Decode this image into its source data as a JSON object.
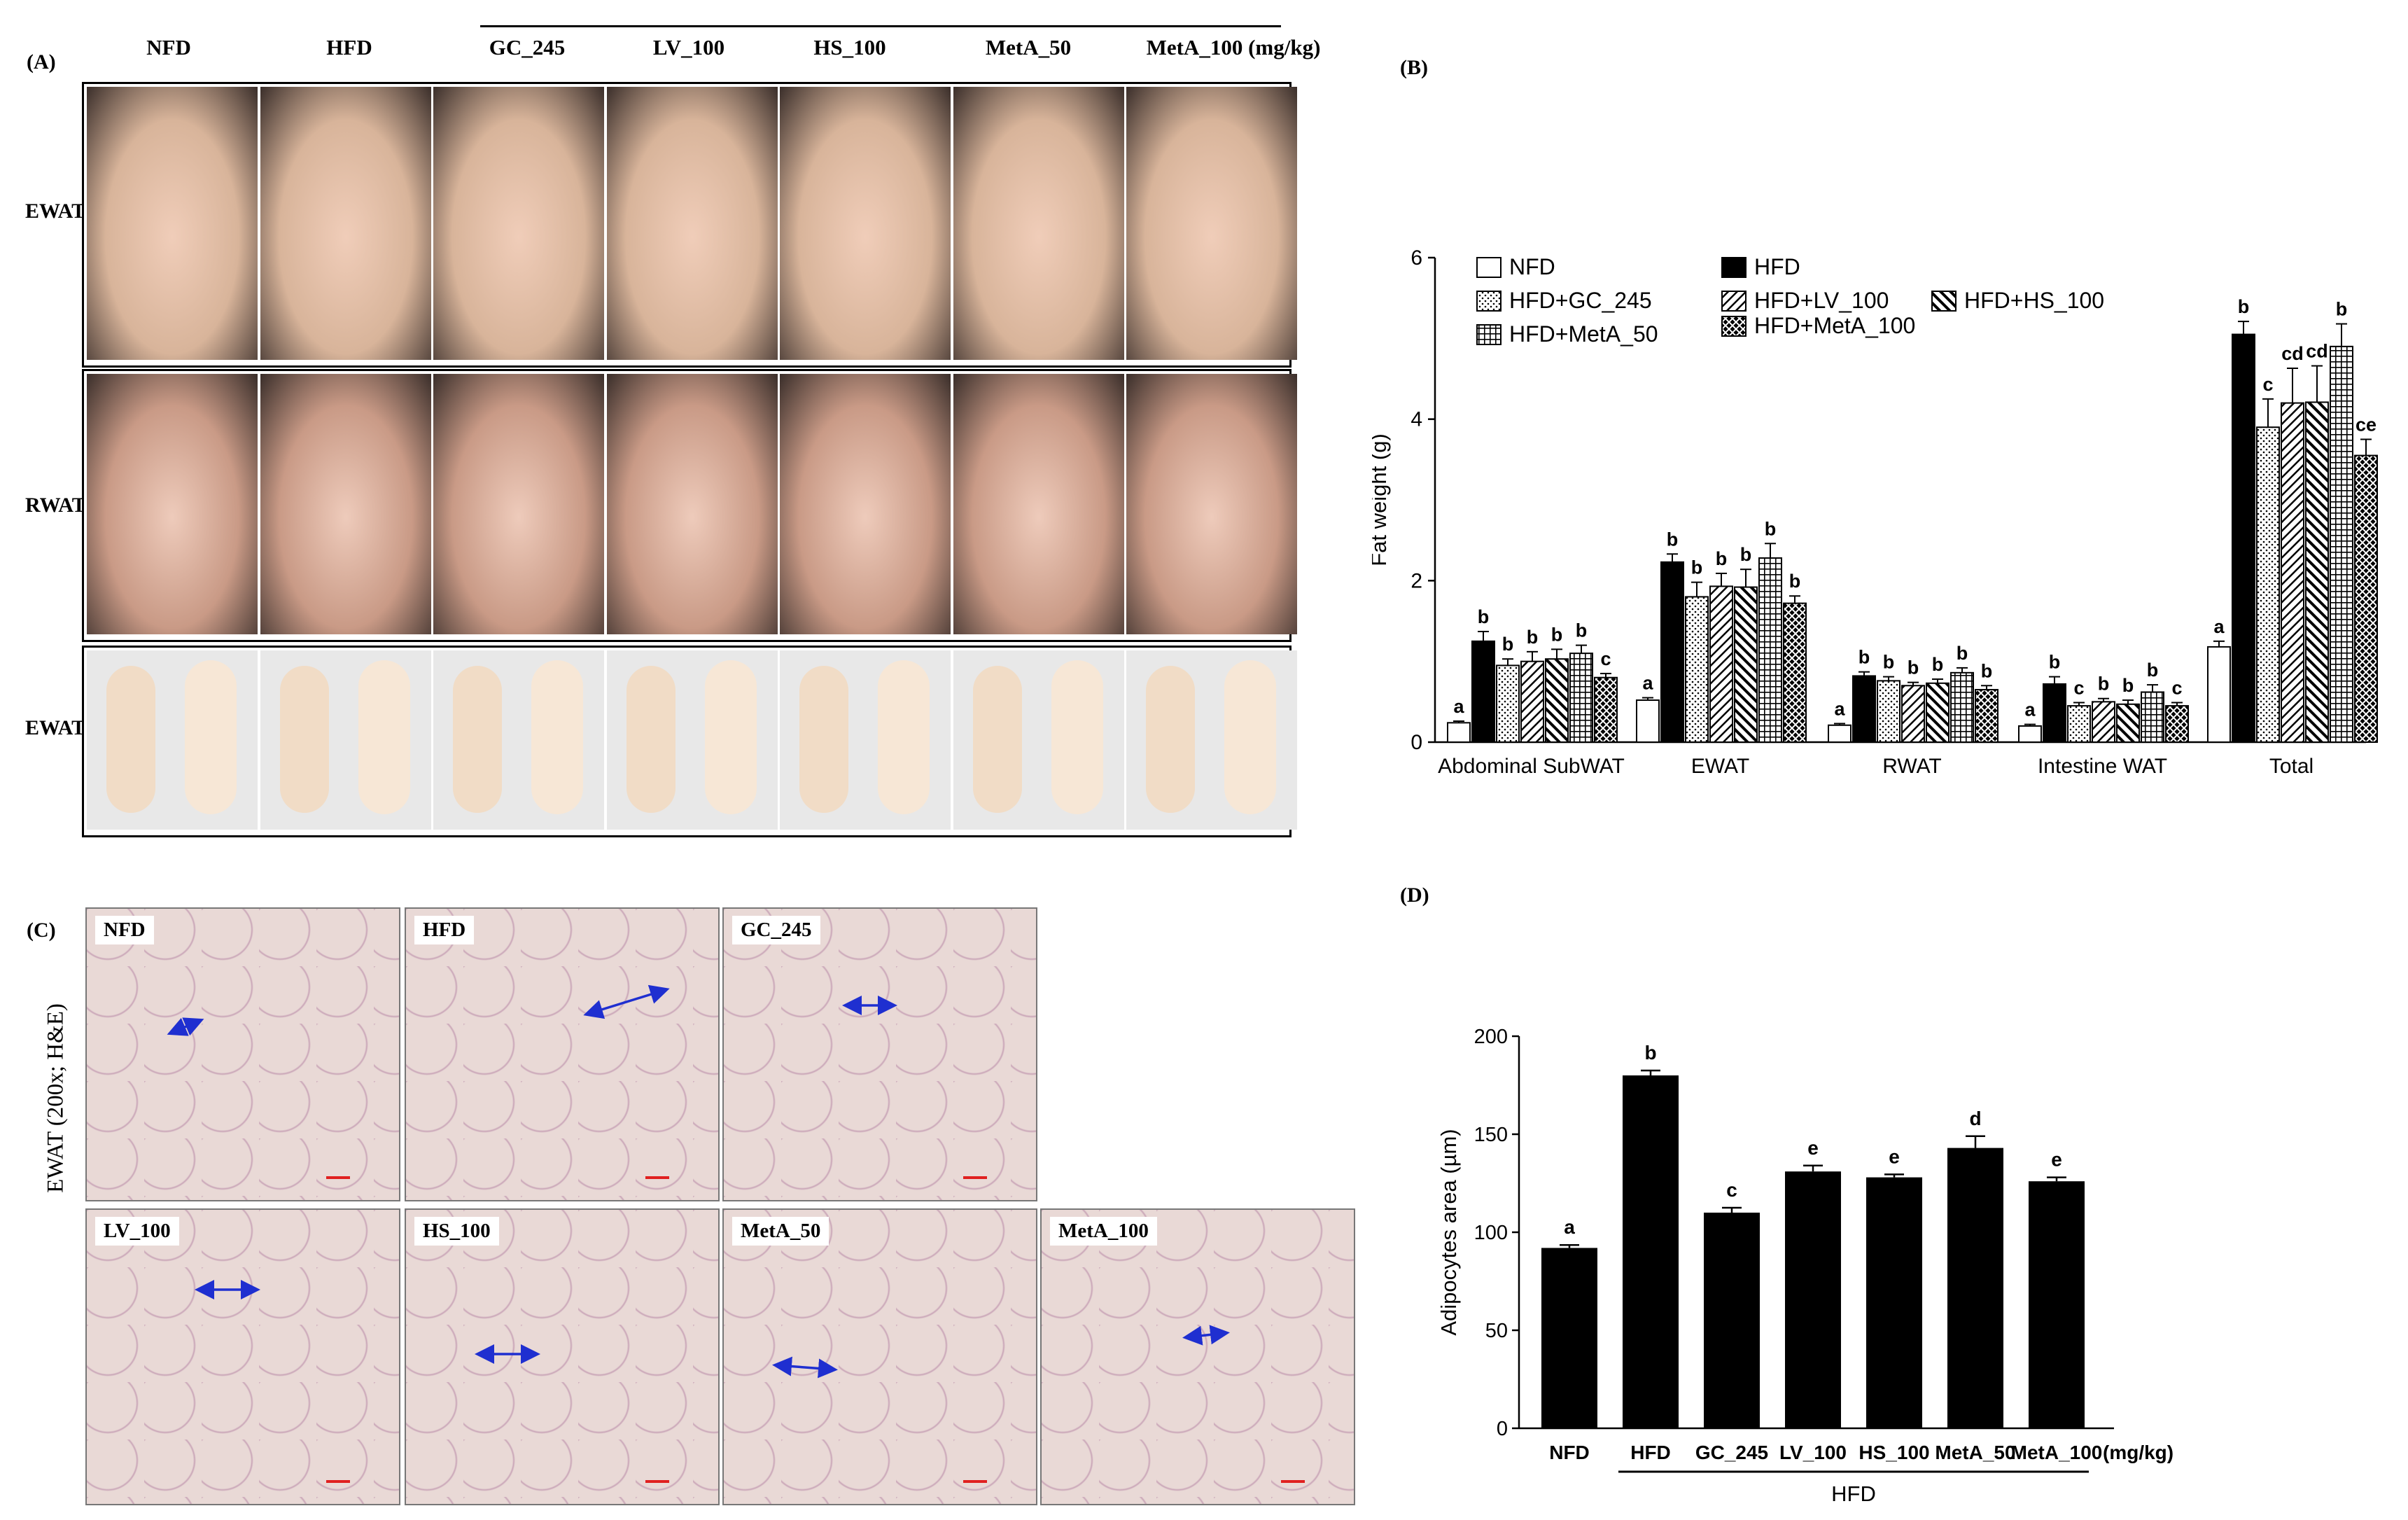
{
  "panels": {
    "A": "(A)",
    "B": "(B)",
    "C": "(C)",
    "D": "(D)"
  },
  "groups": [
    "NFD",
    "HFD",
    "GC_245",
    "LV_100",
    "HS_100",
    "MetA_50",
    "MetA_100 (mg/kg)"
  ],
  "photo_rows": [
    "EWAT",
    "RWAT",
    "EWAT"
  ],
  "histology": {
    "side_label": "EWAT (200x; H&E)",
    "cells": [
      "NFD",
      "HFD",
      "GC_245",
      "LV_100",
      "HS_100",
      "MetA_50",
      "MetA_100"
    ]
  },
  "colors": {
    "bar": "#000000",
    "histo_bg": "#e9d9d6",
    "arrow": "#1f2fd0",
    "scale": "#e02020"
  },
  "chart_data": [
    {
      "type": "bar",
      "panel": "(B)",
      "ylabel": "Fat weight (g)",
      "ylim": [
        0,
        6
      ],
      "yticks": [
        "0",
        "2",
        "4",
        "6"
      ],
      "categories": [
        "Abdominal SubWAT",
        "EWAT",
        "RWAT",
        "Intestine WAT",
        "Total"
      ],
      "legend": [
        "NFD",
        "HFD",
        "HFD+GC_245",
        "HFD+LV_100",
        "HFD+HS_100",
        "HFD+MetA_50",
        "HFD+MetA_100"
      ],
      "legend_placement": "top-left",
      "series": [
        {
          "name": "NFD",
          "pattern": "white",
          "values": [
            0.24,
            0.52,
            0.21,
            0.2,
            1.18
          ],
          "errors": [
            0.02,
            0.03,
            0.02,
            0.02,
            0.07
          ],
          "letters": [
            "a",
            "a",
            "a",
            "a",
            "a"
          ]
        },
        {
          "name": "HFD",
          "pattern": "black",
          "values": [
            1.25,
            2.23,
            0.82,
            0.72,
            5.05
          ],
          "errors": [
            0.12,
            0.1,
            0.05,
            0.09,
            0.16
          ],
          "letters": [
            "b",
            "b",
            "b",
            "b",
            "b"
          ]
        },
        {
          "name": "HFD+GC_245",
          "pattern": "dots",
          "values": [
            0.95,
            1.8,
            0.76,
            0.45,
            3.9
          ],
          "errors": [
            0.08,
            0.18,
            0.05,
            0.04,
            0.35
          ],
          "letters": [
            "b",
            "b",
            "b",
            "c",
            "c"
          ]
        },
        {
          "name": "HFD+LV_100",
          "pattern": "diag",
          "values": [
            1.0,
            1.93,
            0.7,
            0.5,
            4.2
          ],
          "errors": [
            0.12,
            0.16,
            0.04,
            0.04,
            0.43
          ],
          "letters": [
            "b",
            "b",
            "b",
            "b",
            "cd"
          ]
        },
        {
          "name": "HFD+HS_100",
          "pattern": "diag-thick",
          "values": [
            1.03,
            1.92,
            0.73,
            0.47,
            4.21
          ],
          "errors": [
            0.12,
            0.22,
            0.05,
            0.05,
            0.45
          ],
          "letters": [
            "b",
            "b",
            "b",
            "b",
            "cd"
          ]
        },
        {
          "name": "HFD+MetA_50",
          "pattern": "grid",
          "values": [
            1.1,
            2.28,
            0.86,
            0.62,
            4.9
          ],
          "errors": [
            0.1,
            0.18,
            0.06,
            0.09,
            0.28
          ],
          "letters": [
            "b",
            "b",
            "b",
            "b",
            "b"
          ]
        },
        {
          "name": "HFD+MetA_100",
          "pattern": "cross",
          "values": [
            0.8,
            1.72,
            0.65,
            0.45,
            3.55
          ],
          "errors": [
            0.05,
            0.09,
            0.05,
            0.04,
            0.2
          ],
          "letters": [
            "c",
            "b",
            "b",
            "c",
            "ce"
          ]
        }
      ]
    },
    {
      "type": "bar",
      "panel": "(D)",
      "ylabel": "Adipocytes area (µm)",
      "ylim": [
        0,
        200
      ],
      "yticks": [
        "0",
        "50",
        "100",
        "150",
        "200"
      ],
      "categories": [
        "NFD",
        "HFD",
        "GC_245",
        "LV_100",
        "HS_100",
        "MetA_50",
        "MetA_100"
      ],
      "x_suffix": "(mg/kg)",
      "group_label": "HFD",
      "values": [
        92,
        180,
        110,
        131,
        128,
        143,
        126
      ],
      "errors": [
        1.5,
        2.5,
        2.5,
        3.0,
        1.5,
        6.0,
        2.0
      ],
      "letters": [
        "a",
        "b",
        "c",
        "e",
        "e",
        "d",
        "e"
      ]
    }
  ]
}
